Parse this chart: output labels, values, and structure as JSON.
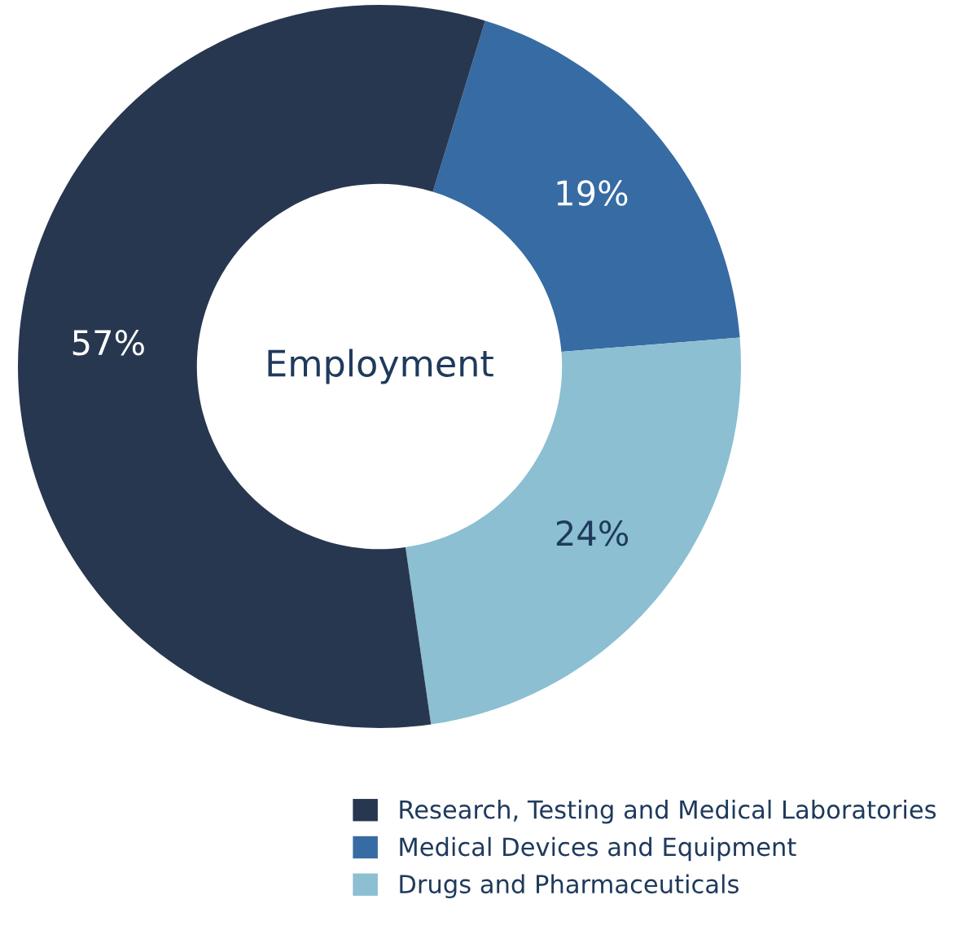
{
  "chart_data": {
    "type": "donut",
    "categories": [
      "Medical Devices and Equipment",
      "Drugs and Pharmaceuticals",
      "Research, Testing and Medical Laboratories"
    ],
    "values": [
      19,
      24,
      57
    ],
    "value_labels": [
      "19%",
      "24%",
      "57%"
    ],
    "colors": [
      "#376ba3",
      "#8bbfd1",
      "#283750"
    ],
    "annotations": [
      "Employment"
    ],
    "legend": "bottom right"
  }
}
